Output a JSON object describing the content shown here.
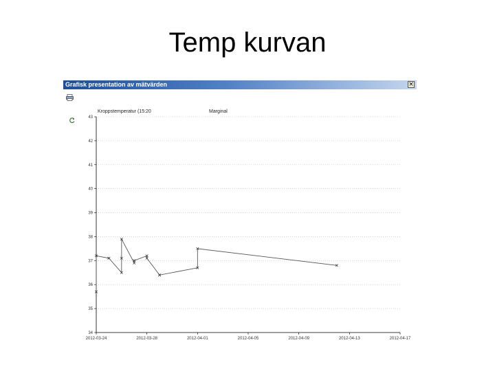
{
  "slide": {
    "title": "Temp kurvan"
  },
  "window": {
    "title": "Grafisk presentation av mätvärden",
    "close_label": "×",
    "print_icon": "printer-icon",
    "refresh_icon": "refresh-icon"
  },
  "chart_data": {
    "type": "line",
    "legend": [
      "Kroppstemperatur (15:20",
      "Marginal"
    ],
    "legend_placement": "top",
    "grid": true,
    "ylim": [
      34,
      43
    ],
    "y_ticks": [
      "34",
      "35",
      "36",
      "37",
      "38",
      "39",
      "40",
      "41",
      "42",
      "43"
    ],
    "xlim": [
      "2012-03-24",
      "2012-04-17"
    ],
    "x_ticks": [
      "2012-03-24",
      "2012-03-28",
      "2012-04-01",
      "2012-04-05",
      "2012-04-09",
      "2012-04-13",
      "2012-04-17"
    ],
    "line_color": "#555555",
    "series": [
      {
        "name": "Kroppstemperatur (15:20",
        "x": [
          "2012-03-24",
          "2012-03-24",
          "2012-03-25",
          "2012-03-25",
          "2012-03-26",
          "2012-03-26",
          "2012-03-26",
          "2012-03-27",
          "2012-03-27",
          "2012-03-28",
          "2012-03-28",
          "2012-03-29",
          "2012-03-29",
          "2012-04-01",
          "2012-04-01",
          "2012-04-12"
        ],
        "y": [
          35.7,
          37.2,
          37.1,
          37.1,
          36.5,
          37.1,
          37.9,
          36.9,
          37.0,
          37.2,
          37.1,
          36.4,
          36.4,
          36.7,
          37.5,
          36.8
        ]
      }
    ]
  }
}
